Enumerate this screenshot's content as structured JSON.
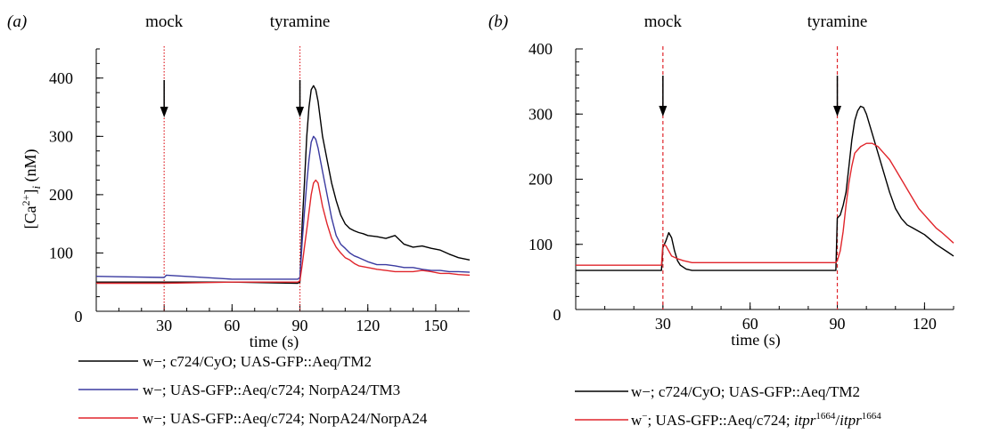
{
  "chart_data": [
    {
      "type": "line",
      "panel_label": "(a)",
      "xlabel": "time (s)",
      "ylabel": "[Ca2+]i (nM)",
      "ylabel_parts": {
        "main": "[Ca",
        "sup": "2+",
        "close": "]",
        "sub": "i",
        "unit": " (nM)"
      },
      "xlim": [
        0,
        165
      ],
      "ylim": [
        0,
        450
      ],
      "xticks": [
        0,
        30,
        60,
        90,
        120,
        150
      ],
      "yticks": [
        100,
        200,
        300,
        400
      ],
      "origin_label": "0",
      "annotations": [
        {
          "text": "mock",
          "x": 30
        },
        {
          "text": "tyramine",
          "x": 90
        }
      ],
      "series": [
        {
          "name": "w−; c724/CyO; UAS-GFP::Aeq/TM2",
          "color": "#000000",
          "x": [
            0,
            30,
            60,
            89,
            90,
            91,
            92,
            93,
            94,
            95,
            96,
            97,
            98,
            99,
            100,
            102,
            104,
            106,
            108,
            110,
            112,
            114,
            116,
            118,
            120,
            124,
            128,
            132,
            136,
            140,
            144,
            148,
            152,
            156,
            160,
            165
          ],
          "y": [
            50,
            50,
            50,
            48,
            50,
            150,
            220,
            300,
            350,
            380,
            387,
            380,
            360,
            330,
            300,
            260,
            220,
            190,
            165,
            150,
            142,
            138,
            135,
            133,
            130,
            128,
            125,
            130,
            115,
            110,
            112,
            108,
            105,
            98,
            92,
            88
          ]
        },
        {
          "name": "w−; UAS-GFP::Aeq/c724; NorpA24/TM3",
          "color": "#3a3aa0",
          "x": [
            0,
            30,
            31,
            60,
            89,
            90,
            91,
            92,
            93,
            94,
            95,
            96,
            97,
            98,
            99,
            100,
            102,
            104,
            106,
            108,
            110,
            112,
            114,
            116,
            120,
            124,
            128,
            132,
            136,
            140,
            144,
            148,
            152,
            156,
            160,
            165
          ],
          "y": [
            60,
            58,
            62,
            55,
            55,
            58,
            120,
            170,
            220,
            260,
            290,
            300,
            295,
            280,
            260,
            240,
            200,
            160,
            130,
            115,
            108,
            100,
            95,
            92,
            85,
            80,
            80,
            78,
            75,
            75,
            72,
            70,
            70,
            68,
            68,
            67
          ]
        },
        {
          "name": "w−; UAS-GFP::Aeq/c724; NorpA24/NorpA24",
          "color": "#e0252b",
          "x": [
            0,
            30,
            60,
            89,
            90,
            91,
            92,
            93,
            94,
            95,
            96,
            97,
            98,
            99,
            100,
            102,
            104,
            106,
            108,
            110,
            112,
            114,
            116,
            120,
            124,
            128,
            132,
            136,
            140,
            144,
            148,
            152,
            156,
            160,
            165
          ],
          "y": [
            48,
            48,
            50,
            50,
            52,
            80,
            110,
            140,
            170,
            200,
            220,
            225,
            220,
            200,
            180,
            150,
            125,
            110,
            100,
            92,
            88,
            82,
            78,
            75,
            72,
            70,
            68,
            68,
            68,
            70,
            68,
            65,
            65,
            63,
            62
          ]
        }
      ]
    },
    {
      "type": "line",
      "panel_label": "(b)",
      "xlabel": "time (s)",
      "ylabel": "",
      "xlim": [
        0,
        130
      ],
      "ylim": [
        0,
        400
      ],
      "xticks": [
        0,
        30,
        60,
        90,
        120
      ],
      "yticks": [
        100,
        200,
        300,
        400
      ],
      "origin_label": "0",
      "annotations": [
        {
          "text": "mock",
          "x": 30
        },
        {
          "text": "tyramine",
          "x": 90
        }
      ],
      "series": [
        {
          "name": "w−; c724/CyO; UAS-GFP::Aeq/TM2",
          "color": "#000000",
          "x": [
            0,
            10,
            20,
            29.5,
            30,
            31,
            32,
            33,
            34,
            35,
            36,
            38,
            40,
            50,
            60,
            70,
            80,
            89.5,
            90,
            91,
            92,
            93,
            94,
            95,
            96,
            97,
            98,
            99,
            100,
            102,
            104,
            106,
            108,
            110,
            112,
            114,
            116,
            118,
            120,
            124,
            128,
            130
          ],
          "y": [
            60,
            60,
            60,
            60,
            95,
            105,
            118,
            110,
            90,
            75,
            68,
            62,
            60,
            60,
            60,
            60,
            60,
            60,
            140,
            145,
            160,
            180,
            220,
            260,
            290,
            305,
            312,
            310,
            300,
            270,
            240,
            210,
            180,
            155,
            140,
            130,
            125,
            120,
            115,
            100,
            88,
            82
          ]
        },
        {
          "name": "w−; UAS-GFP::Aeq/c724; itpr1664/itpr1664",
          "color": "#e0252b",
          "name_parts": {
            "prefix": "w",
            "sup1": "−",
            "mid": "; UAS-GFP::Aeq/c724; ",
            "ital1": "itpr",
            "sup2": "1664",
            "slash": "/",
            "ital2": "itpr",
            "sup3": "1664"
          },
          "x": [
            0,
            10,
            20,
            29.5,
            30,
            31,
            32,
            33,
            35,
            37,
            40,
            50,
            60,
            70,
            80,
            89.5,
            90,
            91,
            92,
            93,
            94,
            95,
            96,
            98,
            100,
            102,
            104,
            106,
            108,
            110,
            112,
            114,
            116,
            118,
            120,
            122,
            124,
            126,
            128,
            130
          ],
          "y": [
            68,
            68,
            68,
            68,
            100,
            98,
            90,
            82,
            78,
            75,
            72,
            72,
            72,
            72,
            72,
            72,
            75,
            90,
            120,
            160,
            195,
            220,
            240,
            250,
            255,
            255,
            250,
            240,
            230,
            215,
            200,
            185,
            170,
            155,
            145,
            135,
            125,
            118,
            110,
            102
          ]
        }
      ]
    }
  ]
}
